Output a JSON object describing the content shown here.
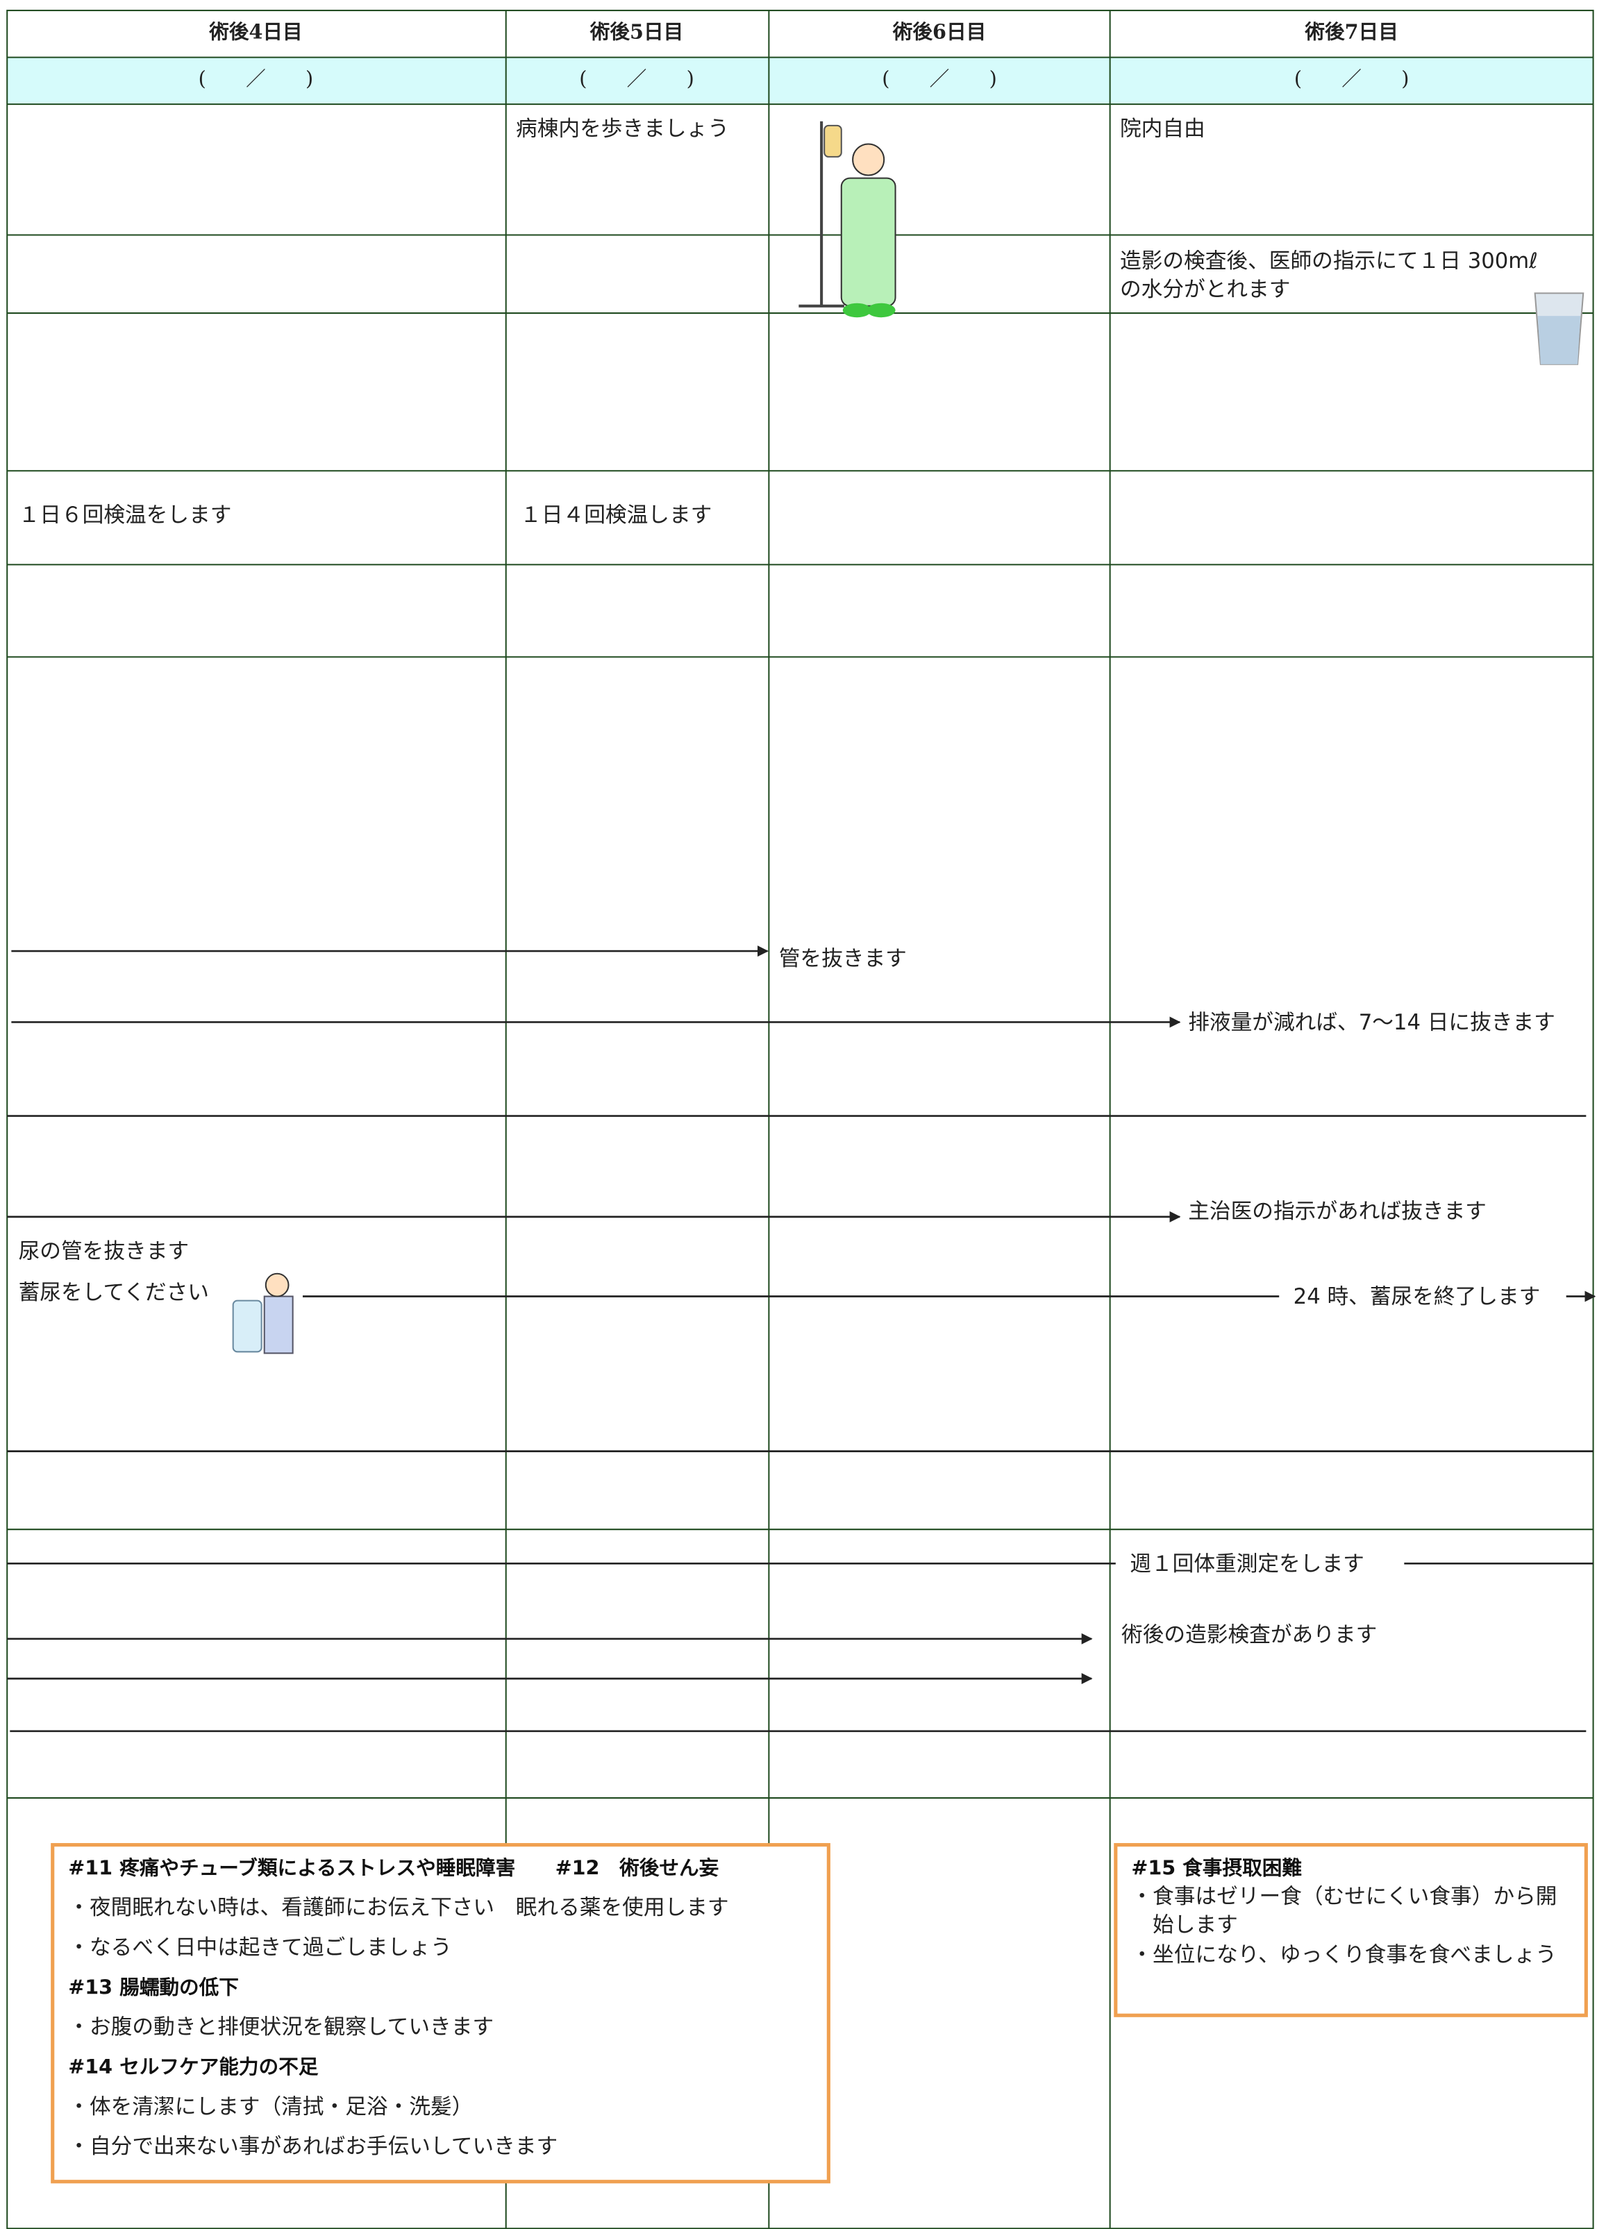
{
  "header": {
    "columns": [
      "術後4日目",
      "術後5日目",
      "術後6日目",
      "術後7日目"
    ],
    "dates": [
      "(　　／　　)",
      "(　　／　　)",
      "(　　／　　)",
      "(　　／　　)"
    ]
  },
  "rows": {
    "activity": [
      "病棟内を歩きましょう",
      "院内自由"
    ],
    "drink": [
      "造影の検査後、医師の指示にて１日 300mℓ",
      "の水分がとれます"
    ],
    "temperature": [
      "１日６回検温をします",
      "１日４回検温します"
    ],
    "tubes": [
      "管を抜きます",
      "排液量が減れば、7～14 日に抜きます",
      "主治医の指示があれば抜きます",
      "尿の管を抜きます",
      "蓄尿をしてください",
      "24 時、蓄尿を終了します"
    ],
    "tests": [
      "週１回体重測定をします",
      "術後の造影検査があります"
    ]
  },
  "care_left": [
    "#11 疼痛やチューブ類によるストレスや睡眠障害　　#12　術後せん妄",
    "・夜間眠れない時は、看護師にお伝え下さい　眠れる薬を使用します",
    "・なるべく日中は起きて過ごしましょう",
    "#13 腸蠕動の低下",
    "・お腹の動きと排便状況を観察していきます",
    "#14 セルフケア能力の不足",
    "・体を清潔にします（清拭・足浴・洗髪）",
    "・自分で出来ない事があればお手伝いしていきます"
  ],
  "care_right": [
    "#15 食事摂取困難",
    "・食事はゼリー食（むせにくい食事）から開",
    "始します",
    "・坐位になり、ゆっくり食事を食べましょう"
  ]
}
